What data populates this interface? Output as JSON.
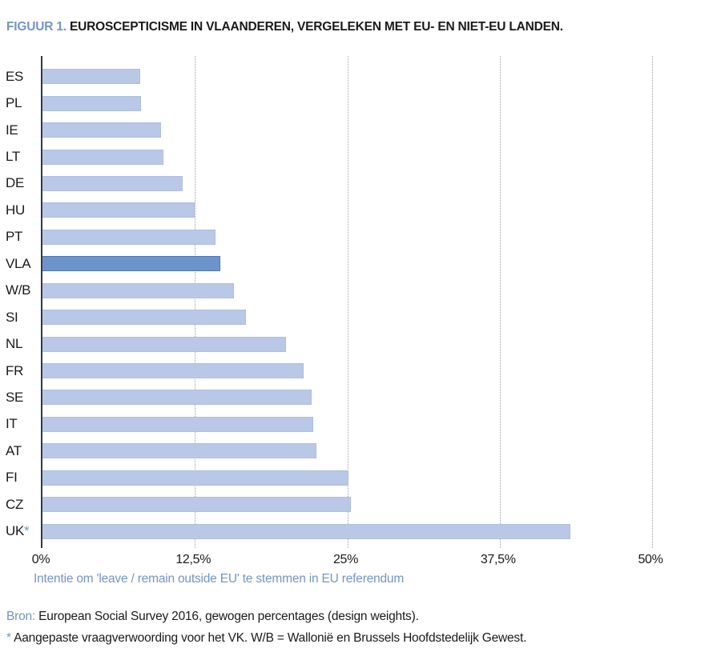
{
  "title": {
    "prefix": "FIGUUR 1.",
    "text": "EUROSCEPTICISME IN VLAANDEREN, VERGELEKEN MET EU- EN NIET-EU LANDEN."
  },
  "chart_data": {
    "type": "bar",
    "orientation": "horizontal",
    "categories": [
      "ES",
      "PL",
      "IE",
      "LT",
      "DE",
      "HU",
      "PT",
      "VLA",
      "W/B",
      "SI",
      "NL",
      "FR",
      "SE",
      "IT",
      "AT",
      "FI",
      "CZ",
      "UK"
    ],
    "category_marks": [
      "",
      "",
      "",
      "",
      "",
      "",
      "",
      "",
      "",
      "",
      "",
      "",
      "",
      "",
      "",
      "",
      "",
      "*"
    ],
    "values": [
      8.0,
      8.1,
      9.7,
      9.9,
      11.5,
      12.5,
      14.2,
      14.6,
      15.7,
      16.7,
      20.0,
      21.4,
      22.1,
      22.2,
      22.5,
      25.1,
      25.3,
      43.3
    ],
    "highlight_category": "VLA",
    "xlabel": "Intentie om 'leave / remain outside EU' te stemmen in EU referendum",
    "x_ticks": [
      {
        "label": "0%",
        "value": 0
      },
      {
        "label": "12,5%",
        "value": 12.5
      },
      {
        "label": "25%",
        "value": 25
      },
      {
        "label": "37,5%",
        "value": 37.5
      },
      {
        "label": "50%",
        "value": 50
      }
    ],
    "xlim": [
      0,
      50
    ],
    "grid": "vertical-dotted",
    "colors": {
      "bar": "#bac8e8",
      "bar_border": "#aebede",
      "highlight": "#6e93ca",
      "highlight_border": "#4f78b0",
      "axis_line": "#2e3a48",
      "gridline": "#9aa0a6",
      "accent_text": "#7295c5"
    }
  },
  "footer": {
    "source_label": "Bron:",
    "source_text": "European Social Survey 2016, gewogen percentages (design weights).",
    "note_mark": "*",
    "note_text": "Aangepaste vraagverwoording voor het VK. W/B = Wallonië en Brussels Hoofdstedelijk Gewest."
  }
}
